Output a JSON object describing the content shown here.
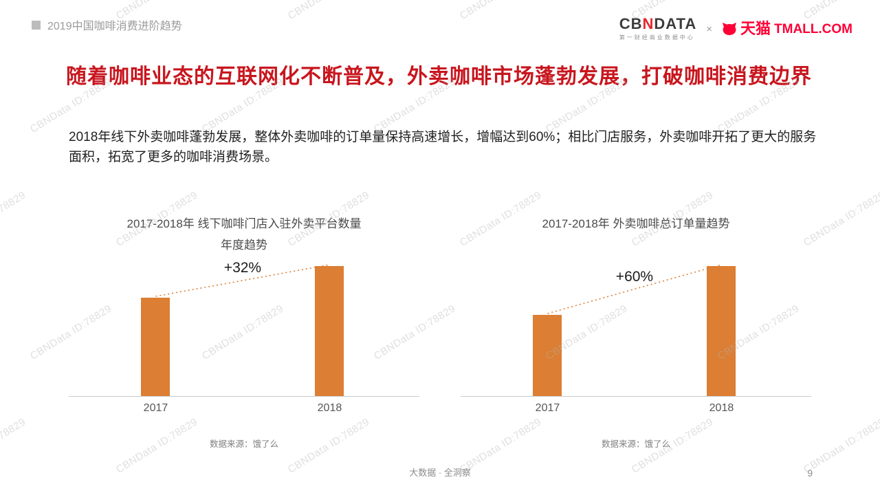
{
  "header": {
    "breadcrumb": "2019中国咖啡消费进阶趋势",
    "logo_cbn": {
      "p1": "CB",
      "n": "N",
      "p2": "DATA",
      "sub": "第一财经商业数据中心"
    },
    "logo_sep": "×",
    "logo_tmall": {
      "cn": "天猫",
      "en": "TMALL.COM"
    }
  },
  "title": "随着咖啡业态的互联网化不断普及，外卖咖啡市场蓬勃发展，打破咖啡消费边界",
  "body": "2018年线下外卖咖啡蓬勃发展，整体外卖咖啡的订单量保持高速增长，增幅达到60%；相比门店服务，外卖咖啡开拓了更大的服务面积，拓宽了更多的咖啡消费场景。",
  "watermark": "CBNData ID:78829",
  "colors": {
    "bar": "#DC7E33",
    "title": "#C8161E",
    "tmall_red": "#FF0036"
  },
  "chart_data": [
    {
      "type": "bar",
      "title": "2017-2018年 线下咖啡门店入驻外卖平台数量",
      "title_line2": "年度趋势",
      "categories": [
        "2017",
        "2018"
      ],
      "values": [
        100,
        132
      ],
      "annotation": "+32%",
      "source": "数据来源：饿了么",
      "xlabel": "",
      "ylabel": "",
      "grid": false,
      "legend": false
    },
    {
      "type": "bar",
      "title": "2017-2018年 外卖咖啡总订单量趋势",
      "title_line2": "",
      "categories": [
        "2017",
        "2018"
      ],
      "values": [
        100,
        160
      ],
      "annotation": "+60%",
      "source": "数据来源：饿了么",
      "xlabel": "",
      "ylabel": "",
      "grid": false,
      "legend": false
    }
  ],
  "footer": {
    "center": "大数据 · 全洞察",
    "page": "9"
  }
}
